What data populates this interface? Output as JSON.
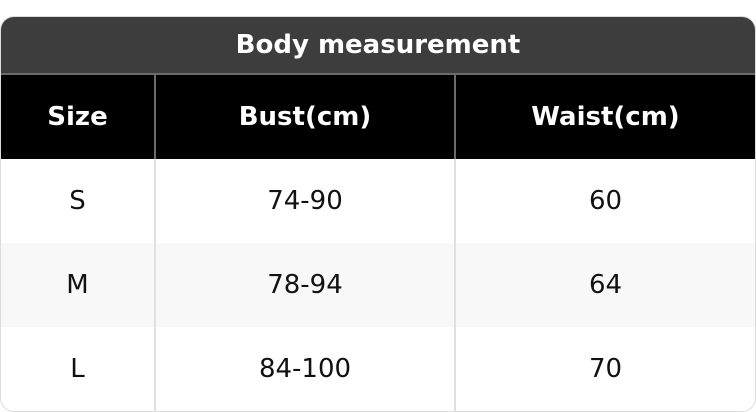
{
  "table": {
    "title": "Body measurement",
    "headers": [
      "Size",
      "Bust(cm)",
      "Waist(cm)"
    ],
    "rows": [
      [
        "S",
        "74-90",
        "60"
      ],
      [
        "M",
        "78-94",
        "64"
      ],
      [
        "L",
        "84-100",
        "70"
      ]
    ]
  },
  "colors": {
    "title_bg": "#3d3d3d",
    "header_bg": "#000000",
    "alt_row_bg": "#f8f8f8"
  }
}
